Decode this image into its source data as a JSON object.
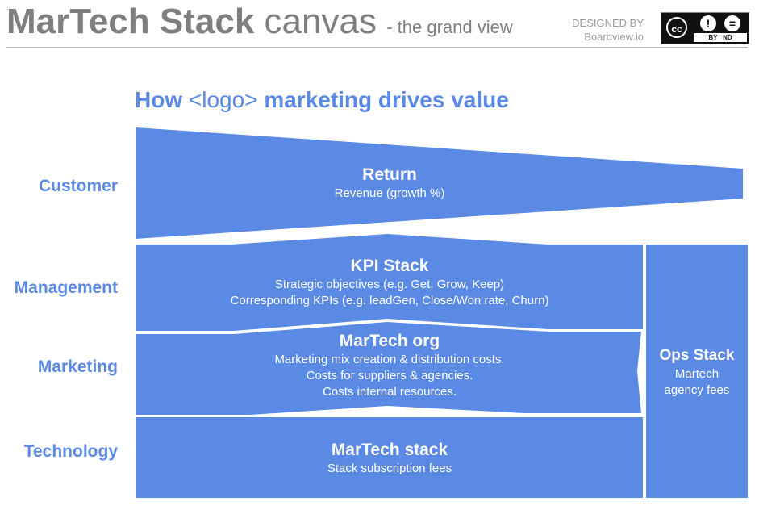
{
  "header": {
    "title_bold": "MarTech Stack",
    "title_light": "canvas",
    "subtitle": "- the grand view",
    "designed_by": "DESIGNED BY",
    "designer": "Boardview.io",
    "license_badge": "CC BY ND"
  },
  "heading": {
    "how": "How",
    "logo": "<logo>",
    "rest": "marketing drives value"
  },
  "colors": {
    "block": "#5b8ae5",
    "label": "#5b8ae5"
  },
  "rows": [
    {
      "label": "Customer"
    },
    {
      "label": "Management"
    },
    {
      "label": "Marketing"
    },
    {
      "label": "Technology"
    }
  ],
  "blocks": {
    "return": {
      "title": "Return",
      "lines": [
        "Revenue (growth %)"
      ]
    },
    "kpi": {
      "title": "KPI Stack",
      "lines": [
        "Strategic objectives (e.g. Get, Grow, Keep)",
        "Corresponding  KPIs (e.g. leadGen, Close/Won rate, Churn)"
      ]
    },
    "org": {
      "title": "MarTech org",
      "lines": [
        "Marketing mix creation & distribution costs.",
        "Costs for suppliers & agencies.",
        "Costs internal resources."
      ]
    },
    "stack": {
      "title": "MarTech stack",
      "lines": [
        "Stack subscription fees"
      ]
    },
    "ops": {
      "title": "Ops Stack",
      "lines": [
        "Martech",
        "agency fees"
      ]
    }
  }
}
